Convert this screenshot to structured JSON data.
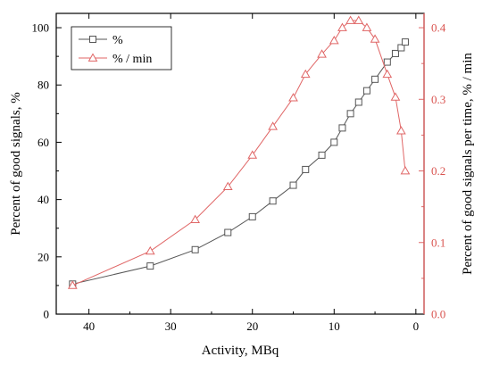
{
  "chart_data": {
    "type": "line",
    "x": [
      42,
      32.5,
      27,
      23,
      20,
      17.5,
      15,
      13.5,
      11.5,
      10,
      9,
      8,
      7,
      6,
      5,
      3.5,
      2.5,
      1.8,
      1.3
    ],
    "series": [
      {
        "name": "%",
        "axis": "left",
        "marker": "square",
        "color": "#555555",
        "values": [
          10.5,
          16.8,
          22.5,
          28.5,
          34,
          39.5,
          45,
          50.5,
          55.5,
          60,
          65,
          70,
          74,
          78,
          82,
          88,
          91,
          93,
          95
        ]
      },
      {
        "name": "% / min",
        "axis": "right",
        "marker": "triangle",
        "color": "#e06666",
        "values": [
          0.04,
          0.088,
          0.132,
          0.178,
          0.222,
          0.262,
          0.302,
          0.335,
          0.363,
          0.382,
          0.4,
          0.41,
          0.41,
          0.4,
          0.384,
          0.335,
          0.303,
          0.256,
          0.2
        ]
      }
    ],
    "xlabel": "Activity, MBq",
    "ylabel": "Percent of good signals, %",
    "ylabel_right": "Percent of good signals per time, % / min",
    "xlim": [
      44,
      -1
    ],
    "ylim": [
      0,
      105
    ],
    "ylim_right": [
      0,
      0.42
    ],
    "x_ticks": [
      40,
      30,
      20,
      10,
      0
    ],
    "y_ticks": [
      0,
      20,
      40,
      60,
      80,
      100
    ],
    "y_ticks_right": [
      0.0,
      0.1,
      0.2,
      0.3,
      0.4
    ],
    "y_tick_labels_right": [
      "0.0",
      "0.1",
      "0.2",
      "0.3",
      "0.4"
    ],
    "legend": {
      "position": "top-left",
      "entries": [
        "%",
        "% / min"
      ]
    },
    "grid": false,
    "right_axis_color": "#e06666"
  }
}
